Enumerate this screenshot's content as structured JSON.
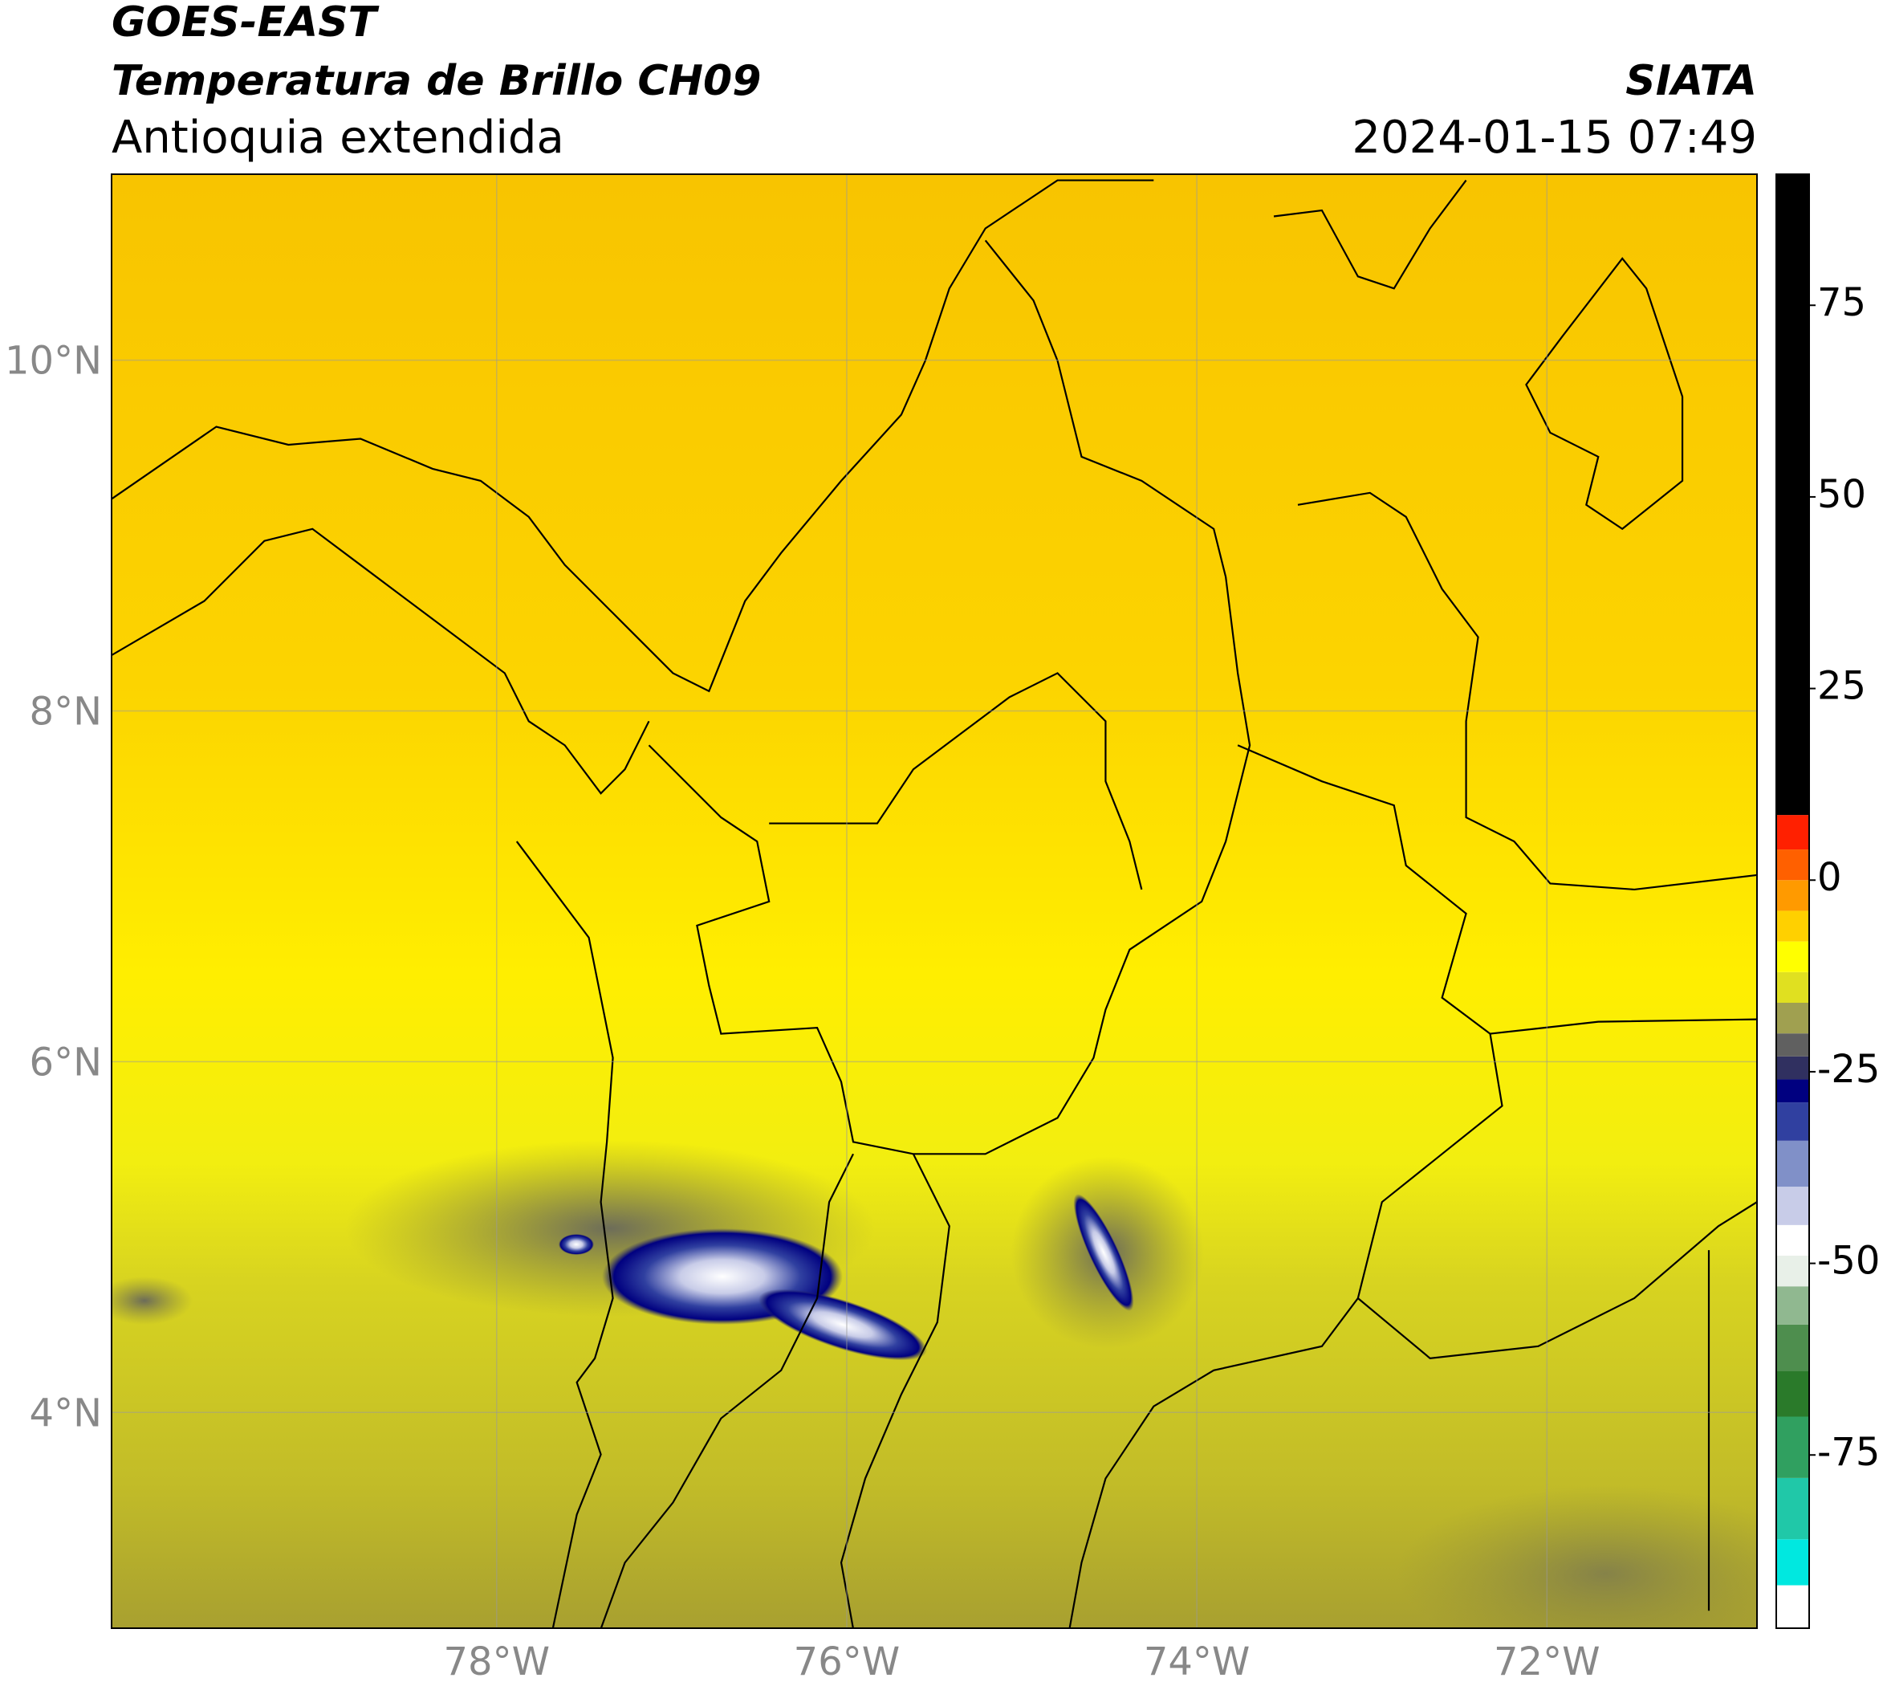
{
  "header": {
    "title": "GOES-EAST",
    "subtitle": "Temperatura de Brillo CH09",
    "region": "Antioquia extendida",
    "source": "SIATA",
    "datetime": "2024-01-15 07:49"
  },
  "map": {
    "xlim": [
      -80.2,
      -70.8
    ],
    "ylim": [
      2.77,
      11.06
    ],
    "xticks": [
      {
        "value": -78,
        "label": "78°W"
      },
      {
        "value": -76,
        "label": "76°W"
      },
      {
        "value": -74,
        "label": "74°W"
      },
      {
        "value": -72,
        "label": "72°W"
      }
    ],
    "yticks": [
      {
        "value": 4,
        "label": "4°N"
      },
      {
        "value": 6,
        "label": "6°N"
      },
      {
        "value": 8,
        "label": "8°N"
      },
      {
        "value": 10,
        "label": "10°N"
      }
    ],
    "grid": true
  },
  "colorbar": {
    "lim": [
      -97.6,
      92.1
    ],
    "ticks": [
      -75,
      -50,
      -25,
      0,
      25,
      50,
      75
    ],
    "bands": [
      {
        "from": -97.6,
        "color": "#ffffff"
      },
      {
        "from": -92,
        "color": "#00e8e0"
      },
      {
        "from": -86,
        "color": "#20c8a8"
      },
      {
        "from": -78,
        "color": "#30a060"
      },
      {
        "from": -70,
        "color": "#2a7a2a"
      },
      {
        "from": -64,
        "color": "#4e8e4e"
      },
      {
        "from": -58,
        "color": "#90b890"
      },
      {
        "from": -53,
        "color": "#e8f0e8"
      },
      {
        "from": -49,
        "color": "#ffffff"
      },
      {
        "from": -45,
        "color": "#c8cce8"
      },
      {
        "from": -40,
        "color": "#8090c8"
      },
      {
        "from": -34,
        "color": "#3040a0"
      },
      {
        "from": -29,
        "color": "#000080"
      },
      {
        "from": -26,
        "color": "#303060"
      },
      {
        "from": -23,
        "color": "#606060"
      },
      {
        "from": -20,
        "color": "#a0a050"
      },
      {
        "from": -16,
        "color": "#e0e020"
      },
      {
        "from": -12,
        "color": "#ffff00"
      },
      {
        "from": -8,
        "color": "#ffd000"
      },
      {
        "from": -4,
        "color": "#ff9a00"
      },
      {
        "from": 0,
        "color": "#ff6000"
      },
      {
        "from": 4,
        "color": "#ff2000"
      },
      {
        "from": 8.5,
        "color": "#000000"
      }
    ]
  }
}
